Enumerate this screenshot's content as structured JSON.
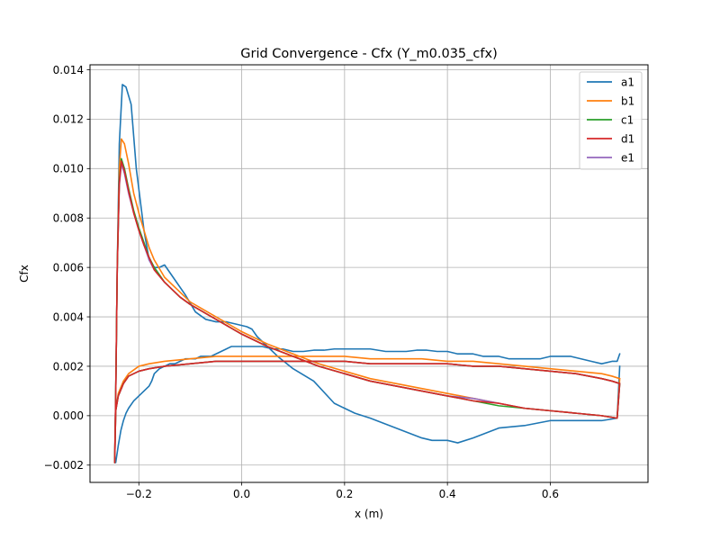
{
  "chart_data": {
    "type": "line",
    "title": "Grid Convergence - Cfx (Y_m0.035_cfx)",
    "xlabel": "x (m)",
    "ylabel": "Cfx",
    "xlim": [
      -0.295,
      0.79
    ],
    "ylim": [
      -0.0027,
      0.0142
    ],
    "x_ticks": [
      -0.2,
      0.0,
      0.2,
      0.4,
      0.6
    ],
    "x_tick_labels": [
      "−0.2",
      "0.0",
      "0.2",
      "0.4",
      "0.6"
    ],
    "y_ticks": [
      -0.002,
      0.0,
      0.002,
      0.004,
      0.006,
      0.008,
      0.01,
      0.012,
      0.014
    ],
    "y_tick_labels": [
      "−0.002",
      "0.000",
      "0.002",
      "0.004",
      "0.006",
      "0.008",
      "0.010",
      "0.012",
      "0.014"
    ],
    "grid": true,
    "legend_position": "top-right",
    "series": [
      {
        "name": "a1",
        "color": "#1f77b4",
        "x": [
          0.735,
          0.73,
          0.72,
          0.7,
          0.68,
          0.66,
          0.64,
          0.62,
          0.6,
          0.58,
          0.55,
          0.52,
          0.5,
          0.47,
          0.45,
          0.42,
          0.4,
          0.38,
          0.36,
          0.34,
          0.32,
          0.3,
          0.28,
          0.25,
          0.22,
          0.2,
          0.18,
          0.16,
          0.14,
          0.12,
          0.1,
          0.08,
          0.06,
          0.04,
          0.03,
          0.02,
          0.01,
          0.0,
          -0.01,
          -0.02,
          -0.03,
          -0.04,
          -0.05,
          -0.06,
          -0.07,
          -0.08,
          -0.09,
          -0.1,
          -0.11,
          -0.12,
          -0.13,
          -0.14,
          -0.15,
          -0.16,
          -0.17,
          -0.175,
          -0.18,
          -0.19,
          -0.2,
          -0.21,
          -0.22,
          -0.225,
          -0.23,
          -0.235,
          -0.24,
          -0.245,
          -0.247,
          -0.245,
          -0.242,
          -0.238,
          -0.232,
          -0.225,
          -0.215,
          -0.205,
          -0.19,
          -0.18,
          -0.17,
          -0.16,
          -0.15,
          -0.13,
          -0.11,
          -0.09,
          -0.07,
          -0.05,
          -0.03,
          -0.01,
          0.01,
          0.02,
          0.03,
          0.05,
          0.07,
          0.1,
          0.14,
          0.18,
          0.2,
          0.22,
          0.25,
          0.3,
          0.35,
          0.37,
          0.4,
          0.42,
          0.45,
          0.5,
          0.55,
          0.6,
          0.65,
          0.7,
          0.73,
          0.735
        ],
        "y": [
          0.0025,
          0.0022,
          0.0022,
          0.0021,
          0.0022,
          0.0023,
          0.0024,
          0.0024,
          0.0024,
          0.0023,
          0.0023,
          0.0023,
          0.0024,
          0.0024,
          0.0025,
          0.0025,
          0.0026,
          0.0026,
          0.00265,
          0.00265,
          0.0026,
          0.0026,
          0.0026,
          0.0027,
          0.0027,
          0.0027,
          0.0027,
          0.00265,
          0.00265,
          0.0026,
          0.0026,
          0.0027,
          0.0027,
          0.0028,
          0.0028,
          0.0028,
          0.0028,
          0.0028,
          0.0028,
          0.0028,
          0.0027,
          0.0026,
          0.0025,
          0.0024,
          0.0024,
          0.0024,
          0.0023,
          0.0023,
          0.0023,
          0.0022,
          0.0021,
          0.0021,
          0.002,
          0.0019,
          0.0017,
          0.0014,
          0.0012,
          0.001,
          0.0008,
          0.0006,
          0.0003,
          0.0001,
          -0.0002,
          -0.0006,
          -0.0012,
          -0.0019,
          -0.0018,
          0.0008,
          0.006,
          0.011,
          0.0134,
          0.0133,
          0.0126,
          0.01,
          0.0075,
          0.0063,
          0.006,
          0.006,
          0.0061,
          0.0055,
          0.0049,
          0.0042,
          0.0039,
          0.0038,
          0.0038,
          0.0037,
          0.0036,
          0.0035,
          0.0032,
          0.0028,
          0.0024,
          0.0019,
          0.0014,
          0.0005,
          0.0003,
          0.0001,
          -0.0001,
          -0.0005,
          -0.0009,
          -0.001,
          -0.001,
          -0.0011,
          -0.0009,
          -0.0005,
          -0.0004,
          -0.0002,
          -0.0002,
          -0.0002,
          -0.0001,
          0.002
        ]
      },
      {
        "name": "b1",
        "color": "#ff7f0e",
        "x": [
          0.735,
          0.72,
          0.7,
          0.65,
          0.6,
          0.55,
          0.5,
          0.45,
          0.4,
          0.35,
          0.3,
          0.25,
          0.2,
          0.15,
          0.1,
          0.05,
          0.0,
          -0.05,
          -0.1,
          -0.15,
          -0.18,
          -0.2,
          -0.22,
          -0.23,
          -0.24,
          -0.245,
          -0.247,
          -0.245,
          -0.242,
          -0.238,
          -0.234,
          -0.228,
          -0.22,
          -0.21,
          -0.2,
          -0.19,
          -0.18,
          -0.17,
          -0.15,
          -0.12,
          -0.1,
          -0.05,
          0.0,
          0.05,
          0.1,
          0.15,
          0.2,
          0.25,
          0.3,
          0.35,
          0.4,
          0.45,
          0.5,
          0.55,
          0.6,
          0.65,
          0.7,
          0.73,
          0.735
        ],
        "y": [
          0.0015,
          0.0016,
          0.0017,
          0.0018,
          0.0019,
          0.002,
          0.0021,
          0.0022,
          0.0022,
          0.0023,
          0.0023,
          0.0023,
          0.0024,
          0.0024,
          0.0024,
          0.0024,
          0.0024,
          0.0024,
          0.0023,
          0.0022,
          0.0021,
          0.002,
          0.0017,
          0.0014,
          0.0009,
          0.0002,
          -0.0019,
          0.0008,
          0.006,
          0.01,
          0.0112,
          0.011,
          0.0102,
          0.009,
          0.0082,
          0.0075,
          0.0068,
          0.0063,
          0.0056,
          0.005,
          0.0046,
          0.004,
          0.0034,
          0.0029,
          0.0025,
          0.0021,
          0.0018,
          0.0015,
          0.0013,
          0.0011,
          0.0009,
          0.0007,
          0.0005,
          0.0003,
          0.0002,
          0.0001,
          0.0,
          -0.0001,
          0.0015
        ]
      },
      {
        "name": "c1",
        "color": "#2ca02c",
        "x": [
          0.735,
          0.72,
          0.7,
          0.65,
          0.6,
          0.55,
          0.5,
          0.45,
          0.4,
          0.35,
          0.3,
          0.25,
          0.2,
          0.15,
          0.1,
          0.05,
          0.0,
          -0.05,
          -0.1,
          -0.15,
          -0.18,
          -0.2,
          -0.22,
          -0.23,
          -0.24,
          -0.245,
          -0.247,
          -0.245,
          -0.242,
          -0.238,
          -0.234,
          -0.228,
          -0.22,
          -0.21,
          -0.2,
          -0.19,
          -0.18,
          -0.17,
          -0.15,
          -0.12,
          -0.1,
          -0.05,
          0.0,
          0.05,
          0.1,
          0.15,
          0.2,
          0.25,
          0.3,
          0.35,
          0.4,
          0.45,
          0.5,
          0.55,
          0.6,
          0.65,
          0.7,
          0.73,
          0.735
        ],
        "y": [
          0.0013,
          0.0014,
          0.0015,
          0.0017,
          0.0018,
          0.0019,
          0.002,
          0.002,
          0.0021,
          0.0021,
          0.0021,
          0.0021,
          0.0022,
          0.0022,
          0.0022,
          0.0022,
          0.0022,
          0.0022,
          0.0021,
          0.002,
          0.0019,
          0.0018,
          0.0016,
          0.0013,
          0.0008,
          0.0002,
          -0.0019,
          0.0008,
          0.006,
          0.0095,
          0.0104,
          0.01,
          0.0092,
          0.0083,
          0.0076,
          0.007,
          0.0064,
          0.006,
          0.0054,
          0.0048,
          0.0045,
          0.0039,
          0.0033,
          0.0028,
          0.0024,
          0.002,
          0.0017,
          0.0014,
          0.0012,
          0.001,
          0.0008,
          0.0006,
          0.0004,
          0.0003,
          0.0002,
          0.0001,
          0.0,
          -0.0001,
          0.0013
        ]
      },
      {
        "name": "d1",
        "color": "#d62728",
        "x": [
          0.735,
          0.72,
          0.7,
          0.65,
          0.6,
          0.55,
          0.5,
          0.45,
          0.4,
          0.35,
          0.3,
          0.25,
          0.2,
          0.15,
          0.1,
          0.05,
          0.0,
          -0.05,
          -0.1,
          -0.15,
          -0.18,
          -0.2,
          -0.22,
          -0.23,
          -0.24,
          -0.245,
          -0.247,
          -0.245,
          -0.242,
          -0.238,
          -0.234,
          -0.228,
          -0.22,
          -0.21,
          -0.2,
          -0.19,
          -0.18,
          -0.17,
          -0.15,
          -0.12,
          -0.1,
          -0.05,
          0.0,
          0.05,
          0.1,
          0.15,
          0.2,
          0.25,
          0.3,
          0.35,
          0.4,
          0.45,
          0.5,
          0.55,
          0.6,
          0.65,
          0.7,
          0.73,
          0.735
        ],
        "y": [
          0.0013,
          0.0014,
          0.0015,
          0.0017,
          0.0018,
          0.0019,
          0.002,
          0.002,
          0.0021,
          0.0021,
          0.0021,
          0.0021,
          0.0022,
          0.0022,
          0.0022,
          0.0022,
          0.0022,
          0.0022,
          0.0021,
          0.002,
          0.0019,
          0.0018,
          0.0016,
          0.0013,
          0.0008,
          0.0002,
          -0.0019,
          0.0008,
          0.006,
          0.0094,
          0.0103,
          0.0099,
          0.0091,
          0.0082,
          0.0075,
          0.0069,
          0.0064,
          0.0059,
          0.0054,
          0.0048,
          0.0045,
          0.0039,
          0.0033,
          0.0028,
          0.0024,
          0.002,
          0.0017,
          0.0014,
          0.0012,
          0.001,
          0.0008,
          0.0006,
          0.0005,
          0.0003,
          0.0002,
          0.0001,
          0.0,
          -0.0001,
          0.0013
        ]
      },
      {
        "name": "e1",
        "color": "#9467bd",
        "x": [
          0.735,
          0.72,
          0.7,
          0.65,
          0.6,
          0.55,
          0.5,
          0.45,
          0.4,
          0.35,
          0.3,
          0.25,
          0.2,
          0.15,
          0.1,
          0.05,
          0.0,
          -0.05,
          -0.1,
          -0.15,
          -0.18,
          -0.2,
          -0.22,
          -0.23,
          -0.24,
          -0.245,
          -0.247,
          -0.245,
          -0.242,
          -0.238,
          -0.234,
          -0.228,
          -0.22,
          -0.21,
          -0.2,
          -0.19,
          -0.18,
          -0.17,
          -0.15,
          -0.12,
          -0.1,
          -0.05,
          0.0,
          0.05,
          0.1,
          0.15,
          0.2,
          0.25,
          0.3,
          0.35,
          0.4,
          0.45,
          0.5,
          0.55,
          0.6,
          0.65,
          0.7,
          0.73,
          0.735
        ],
        "y": [
          0.0013,
          0.0014,
          0.0015,
          0.0017,
          0.0018,
          0.0019,
          0.002,
          0.002,
          0.0021,
          0.0021,
          0.0021,
          0.0021,
          0.0022,
          0.0022,
          0.0022,
          0.0022,
          0.0022,
          0.0022,
          0.0021,
          0.002,
          0.0019,
          0.0018,
          0.0016,
          0.0013,
          0.0008,
          0.0002,
          -0.0019,
          0.0008,
          0.006,
          0.0093,
          0.0102,
          0.0098,
          0.009,
          0.0082,
          0.0075,
          0.0069,
          0.0063,
          0.0059,
          0.0054,
          0.0048,
          0.0045,
          0.0039,
          0.0033,
          0.0028,
          0.0024,
          0.002,
          0.0017,
          0.0014,
          0.0012,
          0.001,
          0.0008,
          0.0007,
          0.0005,
          0.0003,
          0.0002,
          0.0001,
          0.0,
          -0.0001,
          0.0013
        ]
      }
    ]
  }
}
